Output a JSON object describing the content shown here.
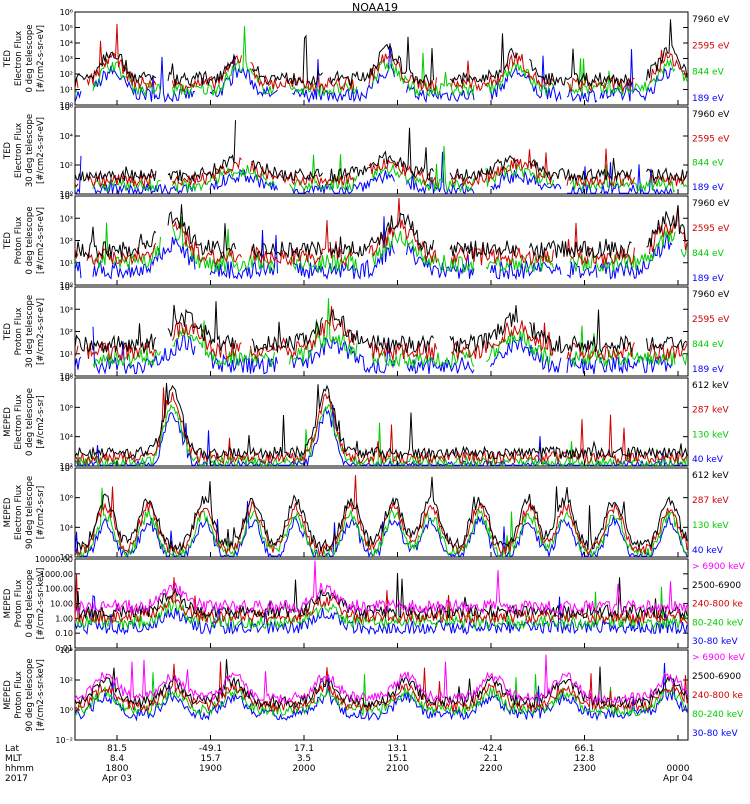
{
  "figure": {
    "title": "NOAA19",
    "colors": {
      "black": "#000000",
      "red": "#d00000",
      "green": "#00cc00",
      "blue": "#0000ff",
      "magenta": "#ff00ff"
    }
  },
  "chart_data": [
    {
      "type": "line",
      "scale": "log",
      "ylabel": [
        "TED",
        "Electron Flux",
        "0 deg telescope",
        "[#/cm2-s-sr-eV]"
      ],
      "yticks": [
        "10⁰",
        "10¹",
        "10²",
        "10³",
        "10⁴",
        "10⁵",
        "10⁶"
      ],
      "ylim": [
        0,
        6
      ],
      "legend": [
        {
          "label": "7960 eV",
          "color": "#000000"
        },
        {
          "label": "2595 eV",
          "color": "#d00000"
        },
        {
          "label": "844 eV",
          "color": "#00cc00"
        },
        {
          "label": "189 eV",
          "color": "#0000ff"
        }
      ],
      "profile": {
        "base": 1.7,
        "bumps": [
          [
            0.06,
            0.1
          ],
          [
            0.27,
            0.1
          ],
          [
            0.51,
            0.1
          ],
          [
            0.72,
            0.1
          ],
          [
            0.97,
            0.1
          ]
        ],
        "bump_amp": 1.8,
        "bump_w": 0.025,
        "mode": "gapdata"
      }
    },
    {
      "type": "line",
      "scale": "log",
      "ylabel": [
        "TED",
        "Electron Flux",
        "30 deg telescope",
        "[#/cm2-s-sr-eV]"
      ],
      "yticks": [
        "10⁰",
        "10²",
        "10⁴",
        "10⁶"
      ],
      "ylim": [
        0,
        6
      ],
      "legend": [
        {
          "label": "7960 eV",
          "color": "#000000"
        },
        {
          "label": "2595 eV",
          "color": "#d00000"
        },
        {
          "label": "844 eV",
          "color": "#00cc00"
        },
        {
          "label": "189 eV",
          "color": "#0000ff"
        }
      ],
      "profile": {
        "base": 1.3,
        "bumps": [
          [
            0.27,
            0.1
          ],
          [
            0.51,
            0.1
          ],
          [
            0.72,
            0.1
          ]
        ],
        "bump_amp": 1.2,
        "bump_w": 0.04,
        "mode": "gapdata"
      }
    },
    {
      "type": "line",
      "scale": "log",
      "ylabel": [
        "TED",
        "Proton Flux",
        "0 deg telescope",
        "[#/cm2-s-sr-eV]"
      ],
      "yticks": [
        "10⁰",
        "10¹",
        "10²",
        "10³",
        "10⁴"
      ],
      "ylim": [
        0,
        4.5
      ],
      "legend": [
        {
          "label": "7960 eV",
          "color": "#000000"
        },
        {
          "label": "2595 eV",
          "color": "#d00000"
        },
        {
          "label": "844 eV",
          "color": "#00cc00"
        },
        {
          "label": "189 eV",
          "color": "#0000ff"
        }
      ],
      "profile": {
        "base": 1.8,
        "bumps": [
          [
            0.16,
            0.1
          ],
          [
            0.53,
            0.1
          ],
          [
            0.97,
            0.1
          ]
        ],
        "bump_amp": 1.6,
        "bump_w": 0.03,
        "mode": "gapdata"
      }
    },
    {
      "type": "line",
      "scale": "log",
      "ylabel": [
        "TED",
        "Proton Flux",
        "30 deg telescope",
        "[#/cm2-s-sr-eV]"
      ],
      "yticks": [
        "10⁰",
        "10¹",
        "10²",
        "10³",
        "10⁴"
      ],
      "ylim": [
        0,
        4.5
      ],
      "legend": [
        {
          "label": "7960 eV",
          "color": "#000000"
        },
        {
          "label": "2595 eV",
          "color": "#d00000"
        },
        {
          "label": "844 eV",
          "color": "#00cc00"
        },
        {
          "label": "189 eV",
          "color": "#0000ff"
        }
      ],
      "profile": {
        "base": 1.6,
        "bumps": [
          [
            0.18,
            0.1
          ],
          [
            0.42,
            0.1
          ],
          [
            0.72,
            0.1
          ]
        ],
        "bump_amp": 1.3,
        "bump_w": 0.035,
        "mode": "gapdata"
      }
    },
    {
      "type": "line",
      "scale": "log",
      "ylabel": [
        "MEPED",
        "Electron Flux",
        "0 deg telescope",
        "[#/cm2-s-sr]"
      ],
      "yticks": [
        "10²",
        "10⁴",
        "10⁶",
        "10⁸"
      ],
      "ylim": [
        1.8,
        8.5
      ],
      "legend": [
        {
          "label": "612 keV",
          "color": "#000000"
        },
        {
          "label": "287 keV",
          "color": "#d00000"
        },
        {
          "label": "130 keV",
          "color": "#00cc00"
        },
        {
          "label": "40 keV",
          "color": "#0000ff"
        }
      ],
      "profile": {
        "base": 2.8,
        "bumps": [
          [
            0.16,
            0.1
          ],
          [
            0.41,
            0.1
          ]
        ],
        "bump_amp": 4.8,
        "bump_w": 0.02,
        "mode": "full"
      }
    },
    {
      "type": "line",
      "scale": "log",
      "ylabel": [
        "MEPED",
        "Electron Flux",
        "90 deg telescope",
        "[#/cm2-s-sr]"
      ],
      "yticks": [
        "10²",
        "10⁴",
        "10⁶",
        "10⁸"
      ],
      "ylim": [
        1.8,
        8.5
      ],
      "legend": [
        {
          "label": "612 keV",
          "color": "#000000"
        },
        {
          "label": "287 keV",
          "color": "#d00000"
        },
        {
          "label": "130 keV",
          "color": "#00cc00"
        },
        {
          "label": "40 keV",
          "color": "#0000ff"
        }
      ],
      "profile": {
        "base": 2.6,
        "bumps": [
          [
            0.05,
            0.1
          ],
          [
            0.12,
            0.1
          ],
          [
            0.21,
            0.1
          ],
          [
            0.29,
            0.1
          ],
          [
            0.36,
            0.1
          ],
          [
            0.45,
            0.1
          ],
          [
            0.52,
            0.1
          ],
          [
            0.58,
            0.1
          ],
          [
            0.66,
            0.1
          ],
          [
            0.74,
            0.1
          ],
          [
            0.8,
            0.1
          ],
          [
            0.88,
            0.1
          ],
          [
            0.97,
            0.1
          ]
        ],
        "bump_amp": 3.5,
        "bump_w": 0.02,
        "mode": "full"
      }
    },
    {
      "type": "line",
      "scale": "log",
      "ylabel": [
        "MEPED",
        "Proton Flux",
        "0 deg telescope",
        "[#/cm2-s-sr-keV]"
      ],
      "yticks": [
        "0.01",
        "0.10",
        "1.00",
        "10.00",
        "100.00",
        "1000.00",
        "10000.00"
      ],
      "ylim": [
        -2,
        4
      ],
      "legend": [
        {
          "label": "> 6900 keV",
          "color": "#ff00ff"
        },
        {
          "label": "2500-6900",
          "color": "#000000"
        },
        {
          "label": "240-800 ke",
          "color": "#d00000"
        },
        {
          "label": "80-240 keV",
          "color": "#00cc00"
        },
        {
          "label": "30-80 keV",
          "color": "#0000ff"
        }
      ],
      "profile": {
        "base": 0.8,
        "bumps": [
          [
            0.16,
            0.1
          ],
          [
            0.41,
            0.1
          ]
        ],
        "bump_amp": 1.3,
        "bump_w": 0.025,
        "mode": "full"
      }
    },
    {
      "type": "line",
      "scale": "log",
      "ylabel": [
        "MEPED",
        "Proton Flux",
        "90 deg telescope",
        "[#/cm2-s-sr-keV]"
      ],
      "yticks": [
        "10⁻²",
        "10⁰",
        "10²",
        "10⁴"
      ],
      "ylim": [
        -2.5,
        5
      ],
      "legend": [
        {
          "label": "> 6900 keV",
          "color": "#ff00ff"
        },
        {
          "label": "2500-6900",
          "color": "#000000"
        },
        {
          "label": "240-800 ke",
          "color": "#d00000"
        },
        {
          "label": "80-240 keV",
          "color": "#00cc00"
        },
        {
          "label": "30-80 keV",
          "color": "#0000ff"
        }
      ],
      "profile": {
        "base": 1.0,
        "bumps": [
          [
            0.05,
            0.1
          ],
          [
            0.16,
            0.1
          ],
          [
            0.26,
            0.1
          ],
          [
            0.41,
            0.1
          ],
          [
            0.54,
            0.1
          ],
          [
            0.68,
            0.1
          ],
          [
            0.8,
            0.1
          ],
          [
            0.97,
            0.1
          ]
        ],
        "bump_amp": 1.8,
        "bump_w": 0.025,
        "mode": "full"
      }
    }
  ],
  "xaxis": {
    "row_labels": [
      "Lat",
      "MLT",
      "hhmm",
      "2017"
    ],
    "ticks": [
      {
        "lat": "81.5",
        "mlt": "8.4",
        "hhmm": "1800",
        "date": "Apr 03"
      },
      {
        "lat": "-49.1",
        "mlt": "15.7",
        "hhmm": "1900",
        "date": ""
      },
      {
        "lat": "17.1",
        "mlt": "3.5",
        "hhmm": "2000",
        "date": ""
      },
      {
        "lat": "13.1",
        "mlt": "15.1",
        "hhmm": "2100",
        "date": ""
      },
      {
        "lat": "-42.4",
        "mlt": "2.1",
        "hhmm": "2200",
        "date": ""
      },
      {
        "lat": "66.1",
        "mlt": "12.8",
        "hhmm": "2300",
        "date": ""
      },
      {
        "lat": "",
        "mlt": "",
        "hhmm": "0000",
        "date": "Apr 04"
      }
    ]
  }
}
